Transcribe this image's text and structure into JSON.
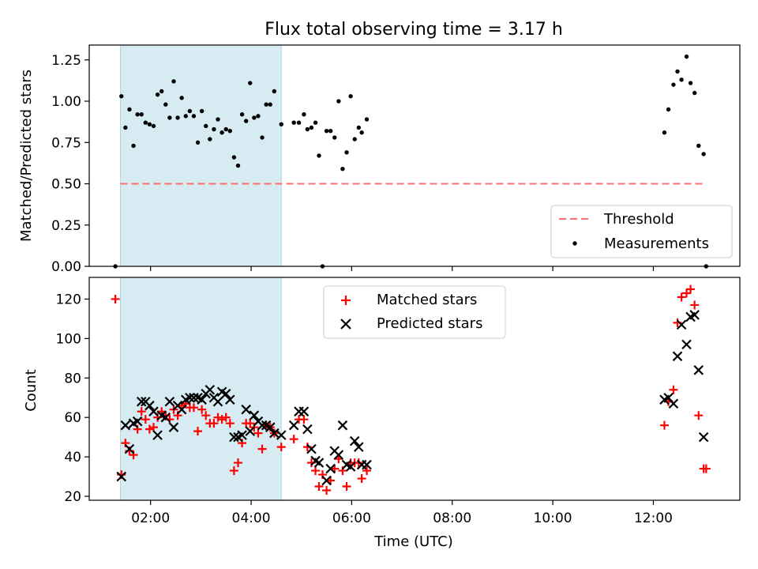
{
  "chart_data": [
    {
      "type": "scatter",
      "title": "Flux total observing time = 3.17 h",
      "xlabel": "",
      "ylabel": "Matched/Predicted stars",
      "xlim": [
        0.78,
        13.72
      ],
      "ylim": [
        0,
        1.34
      ],
      "yticks": [
        0,
        0.25,
        0.5,
        0.75,
        1.0,
        1.25
      ],
      "ytick_labels": [
        "0.00",
        "0.25",
        "0.50",
        "0.75",
        "1.00",
        "1.25"
      ],
      "xticks": [
        2,
        4,
        6,
        8,
        10,
        12
      ],
      "shaded_span": {
        "from": 1.4,
        "to": 4.6
      },
      "threshold": {
        "value": 0.5,
        "from": 1.4,
        "to": 13.0
      },
      "legend": {
        "placement": "lower-right",
        "entries": [
          "Threshold",
          "Measurements"
        ]
      },
      "series": [
        {
          "name": "Measurements",
          "marker": "dot",
          "color": "#000000",
          "points": [
            [
              1.3,
              0.0
            ],
            [
              1.42,
              1.03
            ],
            [
              1.5,
              0.84
            ],
            [
              1.58,
              0.95
            ],
            [
              1.66,
              0.73
            ],
            [
              1.74,
              0.92
            ],
            [
              1.82,
              0.92
            ],
            [
              1.9,
              0.87
            ],
            [
              1.98,
              0.86
            ],
            [
              2.06,
              0.85
            ],
            [
              2.14,
              1.04
            ],
            [
              2.22,
              1.06
            ],
            [
              2.3,
              0.98
            ],
            [
              2.38,
              0.9
            ],
            [
              2.46,
              1.12
            ],
            [
              2.54,
              0.9
            ],
            [
              2.62,
              1.02
            ],
            [
              2.7,
              0.91
            ],
            [
              2.78,
              0.94
            ],
            [
              2.86,
              0.91
            ],
            [
              2.94,
              0.75
            ],
            [
              3.02,
              0.94
            ],
            [
              3.1,
              0.85
            ],
            [
              3.18,
              0.77
            ],
            [
              3.26,
              0.83
            ],
            [
              3.34,
              0.89
            ],
            [
              3.42,
              0.81
            ],
            [
              3.5,
              0.83
            ],
            [
              3.58,
              0.82
            ],
            [
              3.66,
              0.66
            ],
            [
              3.74,
              0.61
            ],
            [
              3.82,
              0.92
            ],
            [
              3.9,
              0.88
            ],
            [
              3.98,
              1.11
            ],
            [
              4.06,
              0.9
            ],
            [
              4.14,
              0.91
            ],
            [
              4.22,
              0.78
            ],
            [
              4.3,
              0.98
            ],
            [
              4.38,
              0.98
            ],
            [
              4.46,
              1.06
            ],
            [
              4.6,
              0.86
            ],
            [
              4.85,
              0.87
            ],
            [
              4.95,
              0.87
            ],
            [
              5.05,
              0.92
            ],
            [
              5.12,
              0.83
            ],
            [
              5.2,
              0.84
            ],
            [
              5.28,
              0.87
            ],
            [
              5.35,
              0.67
            ],
            [
              5.42,
              0.0
            ],
            [
              5.5,
              0.82
            ],
            [
              5.58,
              0.82
            ],
            [
              5.66,
              0.78
            ],
            [
              5.74,
              1.0
            ],
            [
              5.82,
              0.59
            ],
            [
              5.9,
              0.69
            ],
            [
              5.98,
              1.03
            ],
            [
              6.06,
              0.77
            ],
            [
              6.14,
              0.84
            ],
            [
              6.2,
              0.81
            ],
            [
              6.3,
              0.89
            ],
            [
              12.22,
              0.81
            ],
            [
              12.3,
              0.95
            ],
            [
              12.4,
              1.1
            ],
            [
              12.48,
              1.18
            ],
            [
              12.56,
              1.13
            ],
            [
              12.66,
              1.27
            ],
            [
              12.74,
              1.11
            ],
            [
              12.82,
              1.05
            ],
            [
              12.9,
              0.73
            ],
            [
              13.0,
              0.68
            ],
            [
              13.05,
              0.0
            ]
          ]
        }
      ]
    },
    {
      "type": "scatter",
      "title": "",
      "xlabel": "Time (UTC)",
      "ylabel": "Count",
      "xlim": [
        0.78,
        13.72
      ],
      "ylim": [
        18,
        131
      ],
      "yticks": [
        20,
        40,
        60,
        80,
        100,
        120
      ],
      "ytick_labels": [
        "20",
        "40",
        "60",
        "80",
        "100",
        "120"
      ],
      "xticks": [
        2,
        4,
        6,
        8,
        10,
        12
      ],
      "xtick_labels": [
        "02:00",
        "04:00",
        "06:00",
        "08:00",
        "10:00",
        "12:00"
      ],
      "shaded_span": {
        "from": 1.4,
        "to": 4.6
      },
      "legend": {
        "placement": "upper-center",
        "entries": [
          "Matched stars",
          "Predicted stars"
        ]
      },
      "series": [
        {
          "name": "Matched stars",
          "marker": "plus",
          "color": "#ff0000",
          "points": [
            [
              1.3,
              120
            ],
            [
              1.42,
              31
            ],
            [
              1.5,
              47
            ],
            [
              1.58,
              43
            ],
            [
              1.66,
              41
            ],
            [
              1.74,
              54
            ],
            [
              1.82,
              63
            ],
            [
              1.9,
              59
            ],
            [
              1.98,
              54
            ],
            [
              2.06,
              55
            ],
            [
              2.14,
              60
            ],
            [
              2.22,
              63
            ],
            [
              2.3,
              61
            ],
            [
              2.38,
              59
            ],
            [
              2.46,
              64
            ],
            [
              2.54,
              61
            ],
            [
              2.62,
              66
            ],
            [
              2.7,
              67
            ],
            [
              2.78,
              65
            ],
            [
              2.86,
              65
            ],
            [
              2.94,
              53
            ],
            [
              3.02,
              64
            ],
            [
              3.1,
              61
            ],
            [
              3.18,
              57
            ],
            [
              3.26,
              57
            ],
            [
              3.34,
              60
            ],
            [
              3.42,
              59
            ],
            [
              3.5,
              60
            ],
            [
              3.58,
              57
            ],
            [
              3.66,
              33
            ],
            [
              3.74,
              37
            ],
            [
              3.82,
              47
            ],
            [
              3.9,
              57
            ],
            [
              3.98,
              57
            ],
            [
              4.06,
              55
            ],
            [
              4.14,
              52
            ],
            [
              4.22,
              44
            ],
            [
              4.3,
              56
            ],
            [
              4.38,
              55
            ],
            [
              4.46,
              52
            ],
            [
              4.6,
              45
            ],
            [
              4.85,
              49
            ],
            [
              4.95,
              59
            ],
            [
              5.05,
              59
            ],
            [
              5.12,
              45
            ],
            [
              5.2,
              37
            ],
            [
              5.28,
              33
            ],
            [
              5.35,
              25
            ],
            [
              5.42,
              31
            ],
            [
              5.5,
              23
            ],
            [
              5.58,
              28
            ],
            [
              5.66,
              34
            ],
            [
              5.74,
              39
            ],
            [
              5.82,
              33
            ],
            [
              5.9,
              25
            ],
            [
              5.98,
              37
            ],
            [
              6.06,
              37
            ],
            [
              6.14,
              37
            ],
            [
              6.2,
              29
            ],
            [
              6.3,
              33
            ],
            [
              12.22,
              56
            ],
            [
              12.3,
              68
            ],
            [
              12.4,
              74
            ],
            [
              12.48,
              108
            ],
            [
              12.56,
              121
            ],
            [
              12.66,
              123
            ],
            [
              12.74,
              125
            ],
            [
              12.82,
              117
            ],
            [
              12.9,
              61
            ],
            [
              13.0,
              34
            ],
            [
              13.05,
              34
            ]
          ]
        },
        {
          "name": "Predicted stars",
          "marker": "x",
          "color": "#000000",
          "points": [
            [
              1.42,
              30
            ],
            [
              1.5,
              56
            ],
            [
              1.58,
              44
            ],
            [
              1.66,
              57
            ],
            [
              1.74,
              58
            ],
            [
              1.82,
              68
            ],
            [
              1.9,
              68
            ],
            [
              1.98,
              66
            ],
            [
              2.06,
              63
            ],
            [
              2.14,
              51
            ],
            [
              2.22,
              61
            ],
            [
              2.3,
              60
            ],
            [
              2.38,
              68
            ],
            [
              2.46,
              55
            ],
            [
              2.54,
              66
            ],
            [
              2.62,
              64
            ],
            [
              2.7,
              69
            ],
            [
              2.78,
              70
            ],
            [
              2.86,
              70
            ],
            [
              2.94,
              70
            ],
            [
              3.02,
              69
            ],
            [
              3.1,
              72
            ],
            [
              3.18,
              74
            ],
            [
              3.26,
              70
            ],
            [
              3.34,
              68
            ],
            [
              3.42,
              73
            ],
            [
              3.5,
              72
            ],
            [
              3.58,
              69
            ],
            [
              3.66,
              50
            ],
            [
              3.74,
              50
            ],
            [
              3.82,
              51
            ],
            [
              3.9,
              64
            ],
            [
              3.98,
              53
            ],
            [
              4.06,
              61
            ],
            [
              4.14,
              58
            ],
            [
              4.22,
              56
            ],
            [
              4.3,
              56
            ],
            [
              4.38,
              55
            ],
            [
              4.46,
              52
            ],
            [
              4.6,
              51
            ],
            [
              4.85,
              56
            ],
            [
              4.95,
              63
            ],
            [
              5.05,
              63
            ],
            [
              5.12,
              54
            ],
            [
              5.2,
              44
            ],
            [
              5.28,
              38
            ],
            [
              5.35,
              37
            ],
            [
              5.5,
              28
            ],
            [
              5.58,
              34
            ],
            [
              5.66,
              43
            ],
            [
              5.74,
              41
            ],
            [
              5.82,
              56
            ],
            [
              5.9,
              36
            ],
            [
              5.98,
              35
            ],
            [
              6.06,
              48
            ],
            [
              6.14,
              45
            ],
            [
              6.2,
              36
            ],
            [
              6.3,
              36
            ],
            [
              12.22,
              69
            ],
            [
              12.3,
              70
            ],
            [
              12.4,
              67
            ],
            [
              12.48,
              91
            ],
            [
              12.56,
              107
            ],
            [
              12.66,
              97
            ],
            [
              12.74,
              111
            ],
            [
              12.82,
              112
            ],
            [
              12.9,
              84
            ],
            [
              13.0,
              50
            ]
          ]
        }
      ]
    }
  ]
}
